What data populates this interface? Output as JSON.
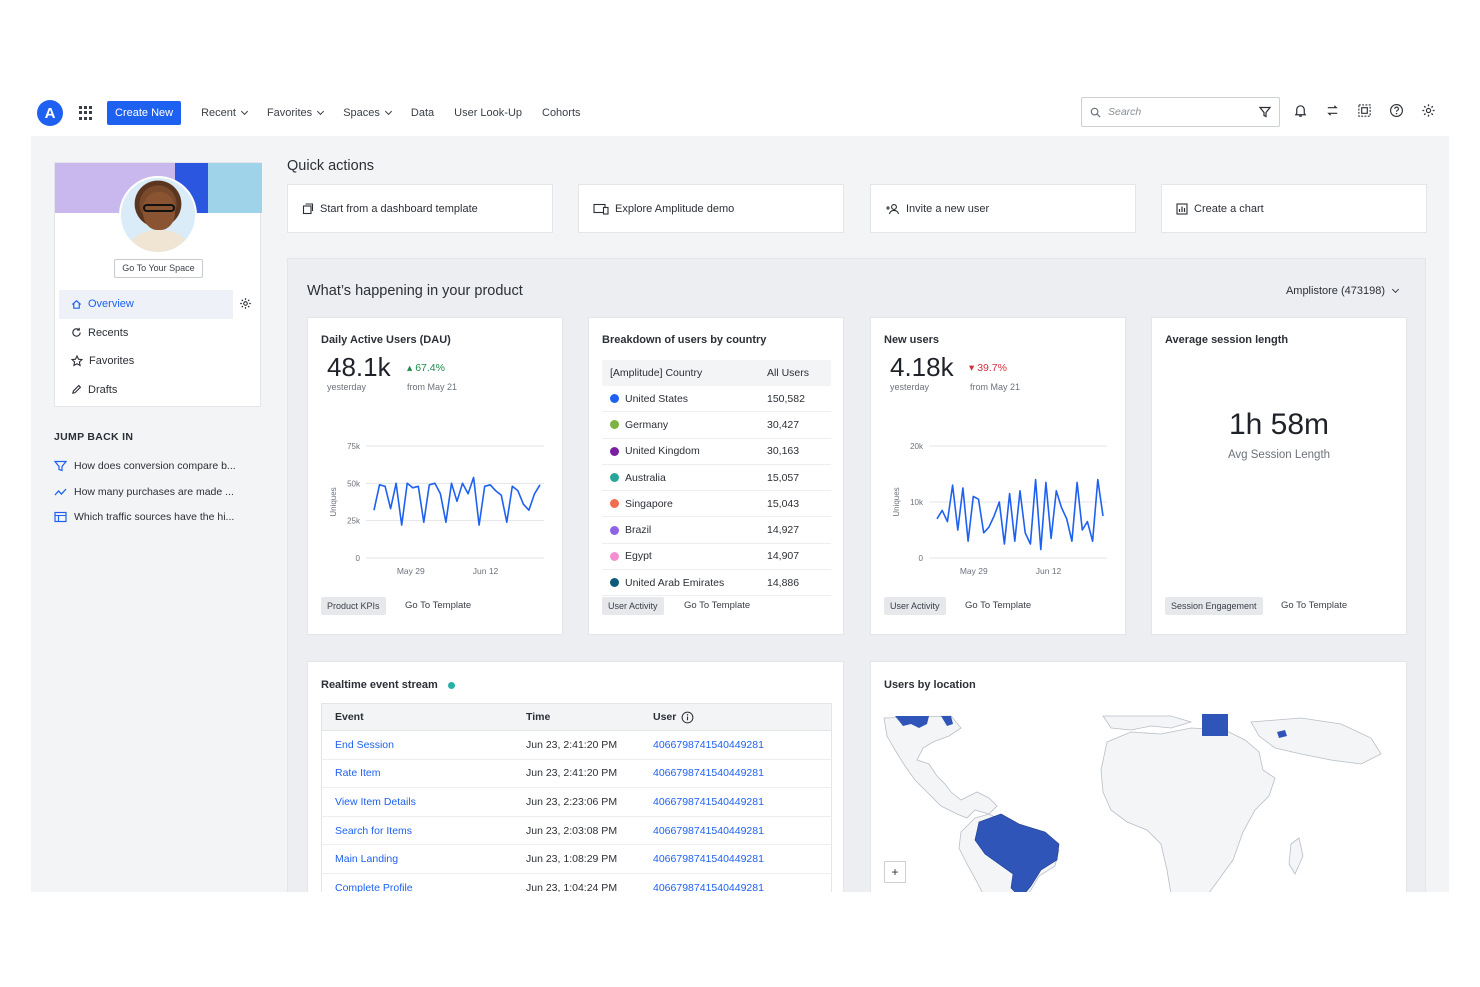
{
  "nav": {
    "create_new": "Create New",
    "items": [
      "Recent",
      "Favorites",
      "Spaces",
      "Data",
      "User Look-Up",
      "Cohorts"
    ],
    "search_placeholder": "Search",
    "accent_color": "#1e61f0"
  },
  "sidebar": {
    "go_to_space": "Go To Your Space",
    "menu": [
      {
        "label": "Overview",
        "icon": "home-icon",
        "active": true
      },
      {
        "label": "Recents",
        "icon": "refresh-icon"
      },
      {
        "label": "Favorites",
        "icon": "star-icon"
      },
      {
        "label": "Drafts",
        "icon": "pencil-icon"
      }
    ],
    "jump_back_title": "JUMP BACK IN",
    "jump_back": [
      {
        "label": "How does conversion compare b...",
        "icon": "funnel-icon"
      },
      {
        "label": "How many purchases are made ...",
        "icon": "line-chart-icon"
      },
      {
        "label": "Which traffic sources have the hi...",
        "icon": "table-icon"
      }
    ]
  },
  "quick_actions": {
    "title": "Quick actions",
    "items": [
      {
        "label": "Start from a dashboard template",
        "icon": "template-icon"
      },
      {
        "label": "Explore Amplitude demo",
        "icon": "devices-icon"
      },
      {
        "label": "Invite a new user",
        "icon": "add-user-icon"
      },
      {
        "label": "Create a chart",
        "icon": "chart-icon"
      }
    ]
  },
  "product": {
    "title": "What’s happening in your product",
    "org": "Amplistore (473198)",
    "dau": {
      "title": "Daily Active Users (DAU)",
      "value": "48.1k",
      "delta": "67.4%",
      "value_note": "yesterday",
      "delta_note": "from May 21",
      "tag": "Product KPIs",
      "link": "Go To Template"
    },
    "countries": {
      "title": "Breakdown of users by country",
      "col1": "[Amplitude] Country",
      "col2": "All Users",
      "rows": [
        {
          "name": "United States",
          "value": "150,582",
          "color": "#1e61f0"
        },
        {
          "name": "Germany",
          "value": "30,427",
          "color": "#7cb342"
        },
        {
          "name": "United Kingdom",
          "value": "30,163",
          "color": "#7b1fa2"
        },
        {
          "name": "Australia",
          "value": "15,057",
          "color": "#26a69a"
        },
        {
          "name": "Singapore",
          "value": "15,043",
          "color": "#ef6c50"
        },
        {
          "name": "Brazil",
          "value": "14,927",
          "color": "#8e63e6"
        },
        {
          "name": "Egypt",
          "value": "14,907",
          "color": "#f48fcf"
        },
        {
          "name": "United Arab Emirates",
          "value": "14,886",
          "color": "#0d5a7a"
        }
      ],
      "tag": "User Activity",
      "link": "Go To Template"
    },
    "new_users": {
      "title": "New users",
      "value": "4.18k",
      "delta": "39.7%",
      "value_note": "yesterday",
      "delta_note": "from May 21",
      "tag": "User Activity",
      "link": "Go To Template"
    },
    "session": {
      "title": "Average session length",
      "value": "1h 58m",
      "subtitle": "Avg Session Length",
      "tag": "Session Engagement",
      "link": "Go To Template"
    },
    "stream": {
      "title": "Realtime event stream",
      "headers": [
        "Event",
        "Time",
        "User"
      ],
      "rows": [
        [
          "End Session",
          "Jun 23, 2:41:20 PM",
          "406679874154044928​1"
        ],
        [
          "Rate Item",
          "Jun 23, 2:41:20 PM",
          "4066798741540449281"
        ],
        [
          "View Item Details",
          "Jun 23, 2:23:06 PM",
          "4066798741540449281"
        ],
        [
          "Search for Items",
          "Jun 23, 2:03:08 PM",
          "4066798741540449281"
        ],
        [
          "Main Landing",
          "Jun 23, 1:08:29 PM",
          "4066798741540449281"
        ],
        [
          "Complete Profile",
          "Jun 23, 1:04:24 PM",
          "4066798741540449281"
        ]
      ]
    },
    "location": {
      "title": "Users by location",
      "zoom_label": "+"
    }
  },
  "chart_data": [
    {
      "type": "line",
      "ylabel": "Uniques",
      "ylim": [
        0,
        75000
      ],
      "yticks": [
        "75k",
        "50k",
        "25k",
        "0"
      ],
      "xticks": [
        "May 29",
        "Jun 12"
      ],
      "series": [
        {
          "values": [
            32000,
            49000,
            48000,
            33000,
            50000,
            22000,
            50000,
            47000,
            48000,
            24000,
            49000,
            50000,
            43000,
            24000,
            50000,
            38000,
            50000,
            43000,
            54000,
            22000,
            48000,
            49000,
            45000,
            42000,
            24000,
            48000,
            45000,
            36000,
            32000,
            43000,
            49000
          ]
        }
      ],
      "color": "#1e61f0"
    },
    {
      "type": "line",
      "ylabel": "Uniques",
      "ylim": [
        0,
        20000
      ],
      "yticks": [
        "20k",
        "10k",
        "0"
      ],
      "xticks": [
        "May 29",
        "Jun 12"
      ],
      "series": [
        {
          "values": [
            7000,
            8500,
            6500,
            13000,
            5000,
            12500,
            3000,
            11000,
            10500,
            4500,
            5500,
            7500,
            10000,
            2500,
            11500,
            3000,
            12000,
            4500,
            2500,
            14000,
            1500,
            13500,
            3500,
            12000,
            9000,
            7000,
            3000,
            13500,
            5000,
            6500,
            3000,
            14000,
            7500
          ]
        }
      ],
      "color": "#1e61f0"
    }
  ]
}
